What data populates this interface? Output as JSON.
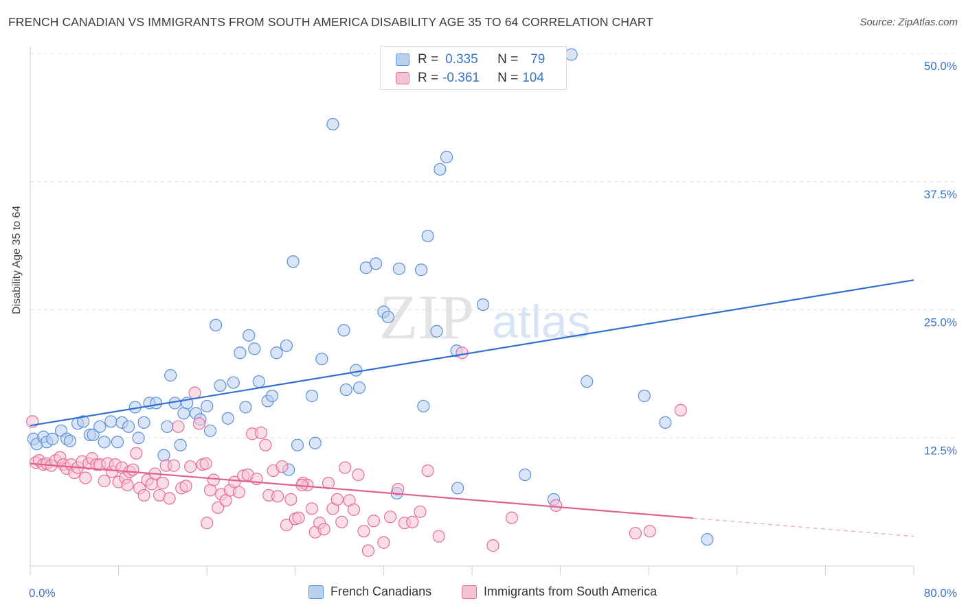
{
  "title": "FRENCH CANADIAN VS IMMIGRANTS FROM SOUTH AMERICA DISABILITY AGE 35 TO 64 CORRELATION CHART",
  "source": "Source: ZipAtlas.com",
  "watermark": {
    "zip": "ZIP",
    "atlas": "atlas"
  },
  "legend_top": {
    "rows": [
      {
        "r_label": "R =",
        "r_value": "0.335",
        "n_label": "N =",
        "n_value": "79"
      },
      {
        "r_label": "R =",
        "r_value": "-0.361",
        "n_label": "N =",
        "n_value": "104"
      }
    ]
  },
  "chart_data": {
    "type": "scatter",
    "title": "FRENCH CANADIAN VS IMMIGRANTS FROM SOUTH AMERICA DISABILITY AGE 35 TO 64 CORRELATION CHART",
    "xlabel": "",
    "ylabel": "Disability Age 35 to 64",
    "xlim": [
      0,
      80
    ],
    "ylim": [
      0,
      50
    ],
    "x_tick_labels": [
      "0.0%",
      "80.0%"
    ],
    "y_tick_labels": [
      "12.5%",
      "25.0%",
      "37.5%",
      "50.0%"
    ],
    "y_ticks": [
      12.5,
      25.0,
      37.5,
      50.0
    ],
    "grid": true,
    "legend_position": "top-center",
    "colors": {
      "blue": "#5b8fd6",
      "blue_fill": "#b9d0f0",
      "pink": "#e86b96",
      "pink_fill": "#f6c3d4"
    },
    "series": [
      {
        "name": "French Canadians",
        "r": 0.335,
        "n": 79,
        "trend": {
          "x": [
            0,
            80
          ],
          "y": [
            13.7,
            27.9
          ]
        },
        "points": [
          [
            0.3,
            12.4
          ],
          [
            0.6,
            11.9
          ],
          [
            1.2,
            12.6
          ],
          [
            1.5,
            12.1
          ],
          [
            2.0,
            12.4
          ],
          [
            2.8,
            13.2
          ],
          [
            3.3,
            12.4
          ],
          [
            3.6,
            12.2
          ],
          [
            4.3,
            13.9
          ],
          [
            4.8,
            14.1
          ],
          [
            5.4,
            12.8
          ],
          [
            5.7,
            12.8
          ],
          [
            6.3,
            13.6
          ],
          [
            6.7,
            12.1
          ],
          [
            7.3,
            14.1
          ],
          [
            7.9,
            12.1
          ],
          [
            8.3,
            14.0
          ],
          [
            8.9,
            13.6
          ],
          [
            9.5,
            15.5
          ],
          [
            9.8,
            12.5
          ],
          [
            10.3,
            14.0
          ],
          [
            10.8,
            15.9
          ],
          [
            11.4,
            15.9
          ],
          [
            12.1,
            10.8
          ],
          [
            12.4,
            13.6
          ],
          [
            12.7,
            18.6
          ],
          [
            13.1,
            15.9
          ],
          [
            13.6,
            11.8
          ],
          [
            13.9,
            14.9
          ],
          [
            14.2,
            15.9
          ],
          [
            15.0,
            14.9
          ],
          [
            15.4,
            14.3
          ],
          [
            16.0,
            15.6
          ],
          [
            16.3,
            13.2
          ],
          [
            16.8,
            23.5
          ],
          [
            17.2,
            17.6
          ],
          [
            17.9,
            14.4
          ],
          [
            18.4,
            17.9
          ],
          [
            19.0,
            20.8
          ],
          [
            19.5,
            15.5
          ],
          [
            19.8,
            22.5
          ],
          [
            20.3,
            21.2
          ],
          [
            20.7,
            18.0
          ],
          [
            21.5,
            16.1
          ],
          [
            21.9,
            16.6
          ],
          [
            22.3,
            20.8
          ],
          [
            23.2,
            21.5
          ],
          [
            23.4,
            9.4
          ],
          [
            23.8,
            29.7
          ],
          [
            24.2,
            11.8
          ],
          [
            25.5,
            16.6
          ],
          [
            25.8,
            12.0
          ],
          [
            26.4,
            20.2
          ],
          [
            27.4,
            43.1
          ],
          [
            28.4,
            23.0
          ],
          [
            28.6,
            17.2
          ],
          [
            29.5,
            19.1
          ],
          [
            29.8,
            17.4
          ],
          [
            30.4,
            29.1
          ],
          [
            31.3,
            29.5
          ],
          [
            32.0,
            24.8
          ],
          [
            32.4,
            24.3
          ],
          [
            33.4,
            29.0
          ],
          [
            35.4,
            28.9
          ],
          [
            35.6,
            15.6
          ],
          [
            36.0,
            32.2
          ],
          [
            36.8,
            22.9
          ],
          [
            37.1,
            38.7
          ],
          [
            37.7,
            39.9
          ],
          [
            38.6,
            21.0
          ],
          [
            38.7,
            7.6
          ],
          [
            41.0,
            25.5
          ],
          [
            44.8,
            8.9
          ],
          [
            47.4,
            6.5
          ],
          [
            49.0,
            49.9
          ],
          [
            50.4,
            18.0
          ],
          [
            55.6,
            16.6
          ],
          [
            57.5,
            14.0
          ],
          [
            61.3,
            2.6
          ],
          [
            33.2,
            7.1
          ]
        ]
      },
      {
        "name": "Immigrants from South America",
        "r": -0.361,
        "n": 104,
        "trend": {
          "x": [
            0,
            80
          ],
          "y": [
            10.0,
            2.9
          ],
          "solid_until_x": 60
        },
        "points": [
          [
            0.2,
            14.1
          ],
          [
            0.5,
            10.1
          ],
          [
            0.8,
            10.3
          ],
          [
            1.2,
            9.9
          ],
          [
            1.5,
            10.0
          ],
          [
            1.9,
            9.8
          ],
          [
            2.3,
            10.3
          ],
          [
            2.7,
            10.6
          ],
          [
            3.0,
            9.9
          ],
          [
            3.3,
            9.5
          ],
          [
            3.7,
            9.9
          ],
          [
            4.0,
            9.1
          ],
          [
            4.3,
            9.6
          ],
          [
            4.7,
            10.2
          ],
          [
            5.0,
            8.6
          ],
          [
            5.3,
            10.0
          ],
          [
            5.6,
            10.5
          ],
          [
            6.0,
            9.9
          ],
          [
            6.3,
            9.9
          ],
          [
            6.7,
            8.3
          ],
          [
            7.0,
            10.0
          ],
          [
            7.4,
            9.2
          ],
          [
            7.7,
            9.9
          ],
          [
            8.0,
            8.2
          ],
          [
            8.3,
            9.6
          ],
          [
            8.6,
            8.6
          ],
          [
            9.0,
            9.2
          ],
          [
            9.3,
            9.4
          ],
          [
            9.6,
            11.0
          ],
          [
            9.9,
            7.6
          ],
          [
            10.3,
            6.9
          ],
          [
            10.6,
            8.4
          ],
          [
            11.0,
            8.0
          ],
          [
            11.3,
            9.0
          ],
          [
            11.7,
            6.9
          ],
          [
            12.0,
            8.1
          ],
          [
            12.3,
            9.8
          ],
          [
            12.6,
            6.6
          ],
          [
            13.0,
            9.8
          ],
          [
            13.4,
            13.6
          ],
          [
            13.7,
            7.6
          ],
          [
            14.1,
            7.8
          ],
          [
            14.5,
            9.7
          ],
          [
            14.9,
            16.9
          ],
          [
            15.3,
            13.9
          ],
          [
            15.6,
            9.9
          ],
          [
            15.9,
            10.0
          ],
          [
            16.3,
            7.4
          ],
          [
            16.6,
            8.4
          ],
          [
            17.0,
            5.7
          ],
          [
            17.3,
            7.0
          ],
          [
            17.7,
            6.4
          ],
          [
            18.1,
            7.4
          ],
          [
            18.5,
            8.2
          ],
          [
            18.9,
            7.2
          ],
          [
            19.3,
            8.8
          ],
          [
            19.7,
            8.9
          ],
          [
            20.1,
            12.9
          ],
          [
            20.5,
            8.5
          ],
          [
            20.9,
            13.0
          ],
          [
            21.3,
            11.8
          ],
          [
            21.6,
            6.9
          ],
          [
            22.0,
            9.3
          ],
          [
            22.4,
            6.8
          ],
          [
            22.8,
            9.7
          ],
          [
            23.2,
            4.0
          ],
          [
            23.6,
            6.5
          ],
          [
            24.0,
            4.6
          ],
          [
            24.3,
            4.7
          ],
          [
            24.7,
            8.1
          ],
          [
            25.1,
            7.9
          ],
          [
            25.5,
            5.6
          ],
          [
            25.8,
            3.3
          ],
          [
            26.2,
            4.2
          ],
          [
            26.6,
            3.6
          ],
          [
            27.0,
            8.1
          ],
          [
            27.4,
            5.6
          ],
          [
            27.8,
            6.5
          ],
          [
            28.2,
            4.3
          ],
          [
            28.5,
            9.6
          ],
          [
            28.9,
            6.4
          ],
          [
            29.3,
            5.5
          ],
          [
            29.7,
            8.9
          ],
          [
            30.2,
            3.4
          ],
          [
            30.6,
            1.5
          ],
          [
            31.1,
            4.4
          ],
          [
            32.0,
            2.3
          ],
          [
            32.6,
            4.8
          ],
          [
            33.3,
            7.5
          ],
          [
            33.9,
            4.2
          ],
          [
            34.6,
            4.3
          ],
          [
            35.3,
            5.3
          ],
          [
            36.0,
            9.3
          ],
          [
            37.0,
            2.9
          ],
          [
            39.1,
            20.8
          ],
          [
            41.9,
            2.0
          ],
          [
            43.6,
            4.7
          ],
          [
            47.6,
            5.9
          ],
          [
            54.8,
            3.2
          ],
          [
            56.1,
            3.4
          ],
          [
            58.9,
            15.2
          ],
          [
            24.6,
            7.9
          ],
          [
            16.0,
            4.2
          ],
          [
            8.8,
            7.9
          ]
        ]
      }
    ]
  }
}
